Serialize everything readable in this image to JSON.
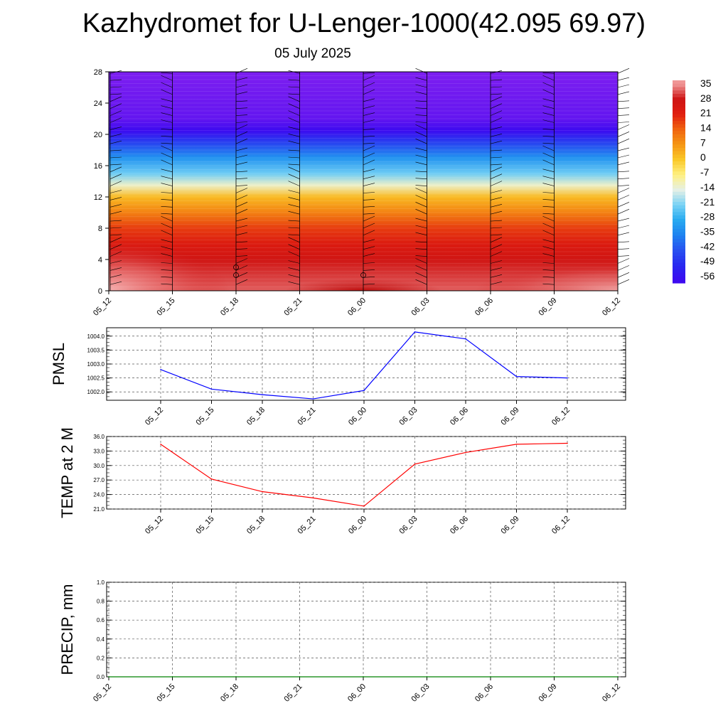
{
  "title": "Kazhydromet for U-Lenger-1000(42.095 69.97)",
  "subtitle": "05 July 2025",
  "chart_data": [
    {
      "type": "heatmap",
      "name": "cross-section",
      "x_ticks": [
        "05_12",
        "05_15",
        "05_18",
        "05_21",
        "06_00",
        "06_03",
        "06_06",
        "06_09",
        "06_12"
      ],
      "y_ticks": [
        0,
        4,
        8,
        12,
        16,
        20,
        24,
        28
      ],
      "ylim": [
        0,
        28
      ],
      "colorbar": {
        "labels": [
          "35",
          "28",
          "21",
          "14",
          "7",
          "0",
          "-7",
          "-14",
          "-21",
          "-28",
          "-35",
          "-42",
          "-49",
          "-56"
        ],
        "colors": [
          "#f0a0a0",
          "#e05a50",
          "#d01414",
          "#e83010",
          "#f06010",
          "#f5a010",
          "#ffe040",
          "#fff8c0",
          "#a0d8f0",
          "#30b0f0",
          "#2080f0",
          "#3050f0",
          "#3010f0",
          "#7d1ef0"
        ]
      },
      "levels": [
        {
          "height": 0,
          "value": 32
        },
        {
          "height": 2,
          "value": 30
        },
        {
          "height": 4,
          "value": 27
        },
        {
          "height": 6,
          "value": 23
        },
        {
          "height": 8,
          "value": 18
        },
        {
          "height": 10,
          "value": 10
        },
        {
          "height": 12,
          "value": 2
        },
        {
          "height": 13.5,
          "value": -12
        },
        {
          "height": 15,
          "value": -22
        },
        {
          "height": 17,
          "value": -32
        },
        {
          "height": 19,
          "value": -45
        },
        {
          "height": 20.5,
          "value": -56
        },
        {
          "height": 22,
          "value": -62
        },
        {
          "height": 28,
          "value": -66
        }
      ]
    },
    {
      "type": "line",
      "name": "PMSL",
      "ylabel": "PMSL",
      "categories": [
        "05_12",
        "05_15",
        "05_18",
        "05_21",
        "06_00",
        "06_03",
        "06_06",
        "06_09",
        "06_12"
      ],
      "values": [
        1002.8,
        1002.1,
        1001.9,
        1001.75,
        1002.05,
        1004.15,
        1003.9,
        1002.55,
        1002.5
      ],
      "y_ticks": [
        "1002.0",
        "1002.5",
        "1003.0",
        "1003.5",
        "1004.0"
      ],
      "ylim": [
        1001.7,
        1004.3
      ],
      "color": "#0000ff"
    },
    {
      "type": "line",
      "name": "TEMP at 2 M",
      "ylabel": "TEMP at 2 M",
      "categories": [
        "05_12",
        "05_15",
        "05_18",
        "05_21",
        "06_00",
        "06_03",
        "06_06",
        "06_09",
        "06_12"
      ],
      "values": [
        34.4,
        27.2,
        24.6,
        23.3,
        21.6,
        30.3,
        32.7,
        34.4,
        34.6
      ],
      "y_ticks": [
        "21.0",
        "24.0",
        "27.0",
        "30.0",
        "33.0",
        "36.0"
      ],
      "ylim": [
        21,
        36
      ],
      "color": "#ff0000"
    },
    {
      "type": "line",
      "name": "PRECIP, mm",
      "ylabel": "PRECIP, mm",
      "categories": [
        "05_12",
        "05_15",
        "05_18",
        "05_21",
        "06_00",
        "06_03",
        "06_06",
        "06_09",
        "06_12"
      ],
      "values": [
        0,
        0,
        0,
        0,
        0,
        0,
        0,
        0,
        0
      ],
      "y_ticks": [
        "0.0",
        "0.2",
        "0.4",
        "0.6",
        "0.8",
        "1.0"
      ],
      "ylim": [
        0,
        1
      ],
      "color": "#008000"
    }
  ]
}
